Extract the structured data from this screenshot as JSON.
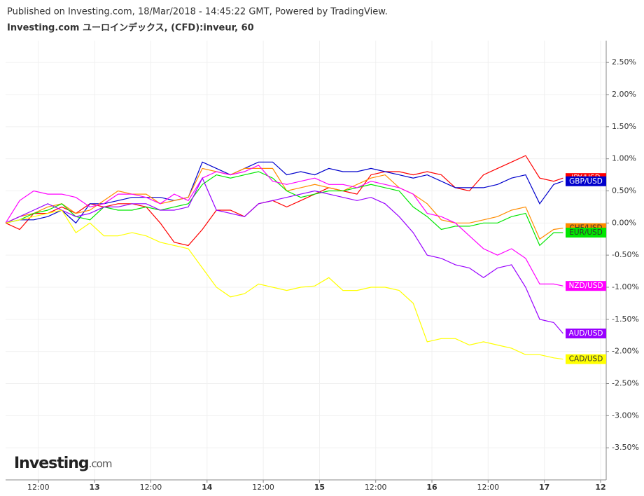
{
  "chart_data": {
    "type": "line",
    "subtitle": "Published on Investing.com, 18/Mar/2018 - 14:45:22 GMT, Powered by TradingView.",
    "title": "Investing.com ユーロインデックス, (CFD):inveur, 60",
    "watermark": [
      "Investing",
      ".com"
    ],
    "x": [
      5,
      8,
      11,
      14,
      17,
      20,
      23,
      26,
      29,
      32,
      35,
      38,
      41,
      44,
      47,
      50,
      53,
      56,
      59,
      62,
      65,
      68,
      71,
      74,
      77,
      80,
      83,
      86,
      89,
      92,
      95,
      98,
      101,
      104,
      107,
      110,
      113,
      116,
      119,
      122,
      124
    ],
    "xlim": [
      5,
      133.2
    ],
    "xticks": [
      {
        "value": 12,
        "label": "12:00"
      },
      {
        "value": 24,
        "label": "13"
      },
      {
        "value": 36,
        "label": "12:00"
      },
      {
        "value": 48,
        "label": "14"
      },
      {
        "value": 60,
        "label": "12:00"
      },
      {
        "value": 72,
        "label": "15"
      },
      {
        "value": 84,
        "label": "12:00"
      },
      {
        "value": 96,
        "label": "16"
      },
      {
        "value": 108,
        "label": "12:00"
      },
      {
        "value": 120,
        "label": "17"
      },
      {
        "value": 132,
        "label": "12"
      }
    ],
    "ylim": [
      -4.0,
      2.84
    ],
    "yticks": [
      {
        "value": 2.5,
        "label": "2.50%"
      },
      {
        "value": 2.0,
        "label": "2.00%"
      },
      {
        "value": 1.5,
        "label": "1.50%"
      },
      {
        "value": 1.0,
        "label": "1.00%"
      },
      {
        "value": 0.5,
        "label": "0.50%"
      },
      {
        "value": 0,
        "label": "0.00%"
      },
      {
        "value": -0.5,
        "label": "-0.50%"
      },
      {
        "value": -1.0,
        "label": "-1.00%"
      },
      {
        "value": -1.5,
        "label": "-1.50%"
      },
      {
        "value": -2.0,
        "label": "-2.00%"
      },
      {
        "value": -2.5,
        "label": "-2.50%"
      },
      {
        "value": -3.0,
        "label": "-3.00%"
      },
      {
        "value": -3.5,
        "label": "-3.50%"
      }
    ],
    "grid": true,
    "series": [
      {
        "name": "JPY/USD",
        "color": "#ff0000",
        "text_color": "#ffffff",
        "values": [
          0,
          -0.1,
          0.15,
          0.15,
          0.25,
          0.15,
          0.3,
          0.25,
          0.3,
          0.3,
          0.25,
          0,
          -0.3,
          -0.35,
          -0.1,
          0.2,
          0.2,
          0.1,
          0.3,
          0.35,
          0.25,
          0.35,
          0.45,
          0.55,
          0.5,
          0.45,
          0.75,
          0.8,
          0.8,
          0.75,
          0.8,
          0.75,
          0.55,
          0.5,
          0.75,
          0.85,
          0.95,
          1.05,
          0.7,
          0.65,
          0.7
        ]
      },
      {
        "name": "GBP/USD",
        "color": "#0000cc",
        "text_color": "#ffffff",
        "values": [
          0,
          0.05,
          0.05,
          0.1,
          0.2,
          0,
          0.3,
          0.3,
          0.35,
          0.4,
          0.4,
          0.4,
          0.35,
          0.4,
          0.95,
          0.85,
          0.75,
          0.85,
          0.95,
          0.95,
          0.75,
          0.8,
          0.75,
          0.85,
          0.8,
          0.8,
          0.85,
          0.8,
          0.75,
          0.7,
          0.75,
          0.65,
          0.55,
          0.55,
          0.55,
          0.6,
          0.7,
          0.75,
          0.3,
          0.6,
          0.65
        ]
      },
      {
        "name": "CHF/USD",
        "color": "#ff8c00",
        "text_color": "#333333",
        "values": [
          0,
          0.1,
          0.15,
          0.25,
          0.3,
          0.15,
          0.2,
          0.35,
          0.5,
          0.45,
          0.45,
          0.3,
          0.35,
          0.4,
          0.85,
          0.8,
          0.75,
          0.85,
          0.85,
          0.85,
          0.5,
          0.55,
          0.6,
          0.55,
          0.5,
          0.6,
          0.7,
          0.75,
          0.55,
          0.45,
          0.3,
          0.05,
          0,
          0,
          0.05,
          0.1,
          0.2,
          0.25,
          -0.25,
          -0.1,
          -0.08
        ]
      },
      {
        "name": "EUR/USD",
        "color": "#00e600",
        "text_color": "#333333",
        "values": [
          0,
          0.05,
          0.15,
          0.2,
          0.3,
          0.1,
          0.05,
          0.25,
          0.2,
          0.2,
          0.25,
          0.2,
          0.25,
          0.3,
          0.6,
          0.75,
          0.7,
          0.75,
          0.8,
          0.7,
          0.5,
          0.4,
          0.45,
          0.5,
          0.5,
          0.55,
          0.6,
          0.55,
          0.5,
          0.25,
          0.1,
          -0.1,
          -0.05,
          -0.05,
          0,
          0,
          0.1,
          0.15,
          -0.35,
          -0.15,
          -0.15
        ]
      },
      {
        "name": "NZD/USD",
        "color": "#ff00ff",
        "text_color": "#ffffff",
        "values": [
          0,
          0.35,
          0.5,
          0.45,
          0.45,
          0.4,
          0.25,
          0.3,
          0.45,
          0.45,
          0.4,
          0.3,
          0.45,
          0.35,
          0.7,
          0.8,
          0.75,
          0.8,
          0.9,
          0.65,
          0.6,
          0.65,
          0.7,
          0.6,
          0.6,
          0.55,
          0.65,
          0.6,
          0.55,
          0.45,
          0.15,
          0.1,
          0,
          -0.2,
          -0.4,
          -0.5,
          -0.4,
          -0.55,
          -0.95,
          -0.95,
          -0.98
        ]
      },
      {
        "name": "AUD/USD",
        "color": "#9900ff",
        "text_color": "#ffffff",
        "values": [
          0,
          0.1,
          0.2,
          0.3,
          0.2,
          0.1,
          0.15,
          0.25,
          0.25,
          0.3,
          0.3,
          0.2,
          0.2,
          0.25,
          0.7,
          0.2,
          0.15,
          0.1,
          0.3,
          0.35,
          0.4,
          0.45,
          0.5,
          0.45,
          0.4,
          0.35,
          0.4,
          0.3,
          0.1,
          -0.15,
          -0.5,
          -0.55,
          -0.65,
          -0.7,
          -0.85,
          -0.7,
          -0.65,
          -1.0,
          -1.5,
          -1.55,
          -1.72
        ]
      },
      {
        "name": "CAD/USD",
        "color": "#ffff00",
        "text_color": "#333333",
        "values": [
          0,
          0.05,
          0.1,
          0.15,
          0.2,
          -0.15,
          0,
          -0.2,
          -0.2,
          -0.15,
          -0.2,
          -0.3,
          -0.35,
          -0.4,
          -0.7,
          -1.0,
          -1.15,
          -1.1,
          -0.95,
          -1.0,
          -1.05,
          -1.0,
          -0.98,
          -0.85,
          -1.05,
          -1.05,
          -1.0,
          -1.0,
          -1.05,
          -1.25,
          -1.85,
          -1.8,
          -1.8,
          -1.9,
          -1.85,
          -1.9,
          -1.95,
          -2.05,
          -2.05,
          -2.1,
          -2.12
        ]
      }
    ]
  }
}
